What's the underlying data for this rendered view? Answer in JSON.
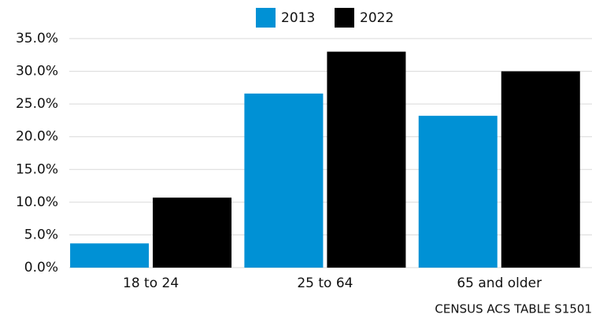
{
  "chart_data": {
    "type": "bar",
    "categories": [
      "18 to 24",
      "25 to 64",
      "65 and older"
    ],
    "series": [
      {
        "name": "2013",
        "color": "#0091d5",
        "values": [
          3.7,
          26.6,
          23.2
        ]
      },
      {
        "name": "2022",
        "color": "#000000",
        "values": [
          10.7,
          33.0,
          30.0
        ]
      }
    ],
    "ylim": [
      0,
      35
    ],
    "yticks": [
      {
        "value": 0,
        "label": "0.0%"
      },
      {
        "value": 5,
        "label": "5.0%"
      },
      {
        "value": 10,
        "label": "10.0%"
      },
      {
        "value": 15,
        "label": "15.0%"
      },
      {
        "value": 20,
        "label": "20.0%"
      },
      {
        "value": 25,
        "label": "25.0%"
      },
      {
        "value": 30,
        "label": "30.0%"
      },
      {
        "value": 35,
        "label": "35.0%"
      }
    ],
    "grid": true,
    "legend": "top",
    "source": "CENSUS ACS TABLE S1501"
  }
}
